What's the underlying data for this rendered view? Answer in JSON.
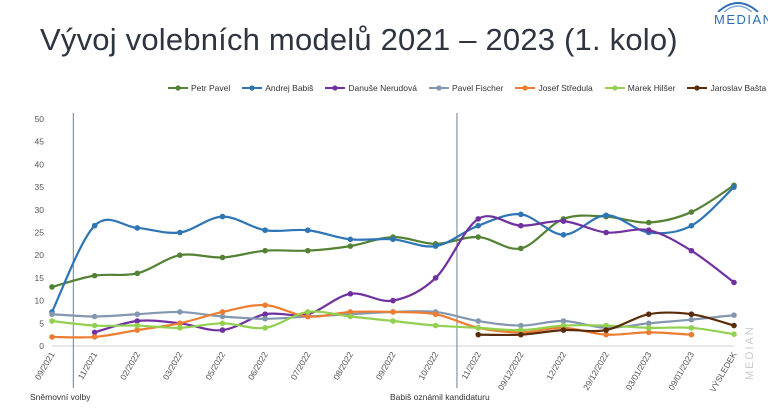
{
  "header": {
    "title": "Vývoj volebních modelů 2021 – 2023 (1. kolo)",
    "logo": "MEDIAN",
    "side_watermark": "MEDIAN"
  },
  "colors": {
    "petr_pavel": "#548235",
    "andrej_babis": "#2e75b6",
    "danuse_nerudova": "#7030a0",
    "pavel_fischer": "#8497b0",
    "josef_stredula": "#ed7d31",
    "marek_hilser": "#92d050",
    "jaroslav_basta": "#5b2c0a"
  },
  "chart_data": {
    "type": "line",
    "title": "Vývoj volebních modelů 2021 – 2023 (1. kolo)",
    "categories": [
      "09/2021",
      "11/2021",
      "02/2022",
      "03/2022",
      "05/2022",
      "06/2022",
      "07/2022",
      "08/2022",
      "09/2022",
      "10/2022",
      "11/2022",
      "09/12/2022",
      "12/2022",
      "29/12/2022",
      "03/01/2023",
      "09/01/2023",
      "VÝSLEDEK"
    ],
    "ylim": [
      0,
      50
    ],
    "yticks": [
      "0",
      "5",
      "10",
      "15",
      "20",
      "25",
      "30",
      "35",
      "40",
      "45",
      "50"
    ],
    "grid": false,
    "legend_position": "top",
    "annotations": [
      {
        "label": "Sněmovní volby",
        "at_category": "09/2021"
      },
      {
        "label": "Babiš oznámil kandidaturu",
        "at_category": "10/2022"
      }
    ],
    "series": [
      {
        "name": "Petr Pavel",
        "color_key": "petr_pavel",
        "values": [
          13,
          15.5,
          16,
          20,
          19.5,
          21,
          21,
          22,
          24,
          22.5,
          24,
          21.5,
          28,
          28.5,
          27.2,
          29.5,
          35.4
        ]
      },
      {
        "name": "Andrej Babiš",
        "color_key": "andrej_babis",
        "values": [
          7.5,
          26.5,
          26,
          25,
          28.5,
          25.5,
          25.5,
          23.5,
          23.5,
          22,
          26.5,
          29,
          24.5,
          28.8,
          25,
          26.5,
          35
        ]
      },
      {
        "name": "Danuše Nerudová",
        "color_key": "danuse_nerudova",
        "values": [
          null,
          3,
          5.5,
          5,
          3.5,
          7,
          7,
          11.5,
          10,
          15,
          28,
          26.5,
          27.5,
          25,
          25.5,
          21,
          14
        ]
      },
      {
        "name": "Pavel Fischer",
        "color_key": "pavel_fischer",
        "values": [
          7,
          6.5,
          7,
          7.5,
          6.5,
          6,
          6.5,
          7,
          7.5,
          7.5,
          5.5,
          4.5,
          5.5,
          4,
          5,
          5.8,
          6.8
        ]
      },
      {
        "name": "Josef Středula",
        "color_key": "josef_stredula",
        "values": [
          2,
          2,
          3.5,
          5,
          7.5,
          9,
          6.5,
          7.5,
          7.5,
          7,
          4,
          3,
          4,
          2.5,
          3,
          2.5,
          null
        ]
      },
      {
        "name": "Marek Hilšer",
        "color_key": "marek_hilser",
        "values": [
          5.5,
          4.5,
          4.5,
          4,
          5,
          4,
          7.5,
          6.5,
          5.5,
          4.5,
          4,
          3.5,
          4.5,
          4.5,
          4,
          4,
          2.6
        ]
      },
      {
        "name": "Jaroslav Bašta",
        "color_key": "jaroslav_basta",
        "values": [
          null,
          null,
          null,
          null,
          null,
          null,
          null,
          null,
          null,
          null,
          2.5,
          2.5,
          3.5,
          3.5,
          7,
          7,
          4.5
        ]
      }
    ]
  }
}
